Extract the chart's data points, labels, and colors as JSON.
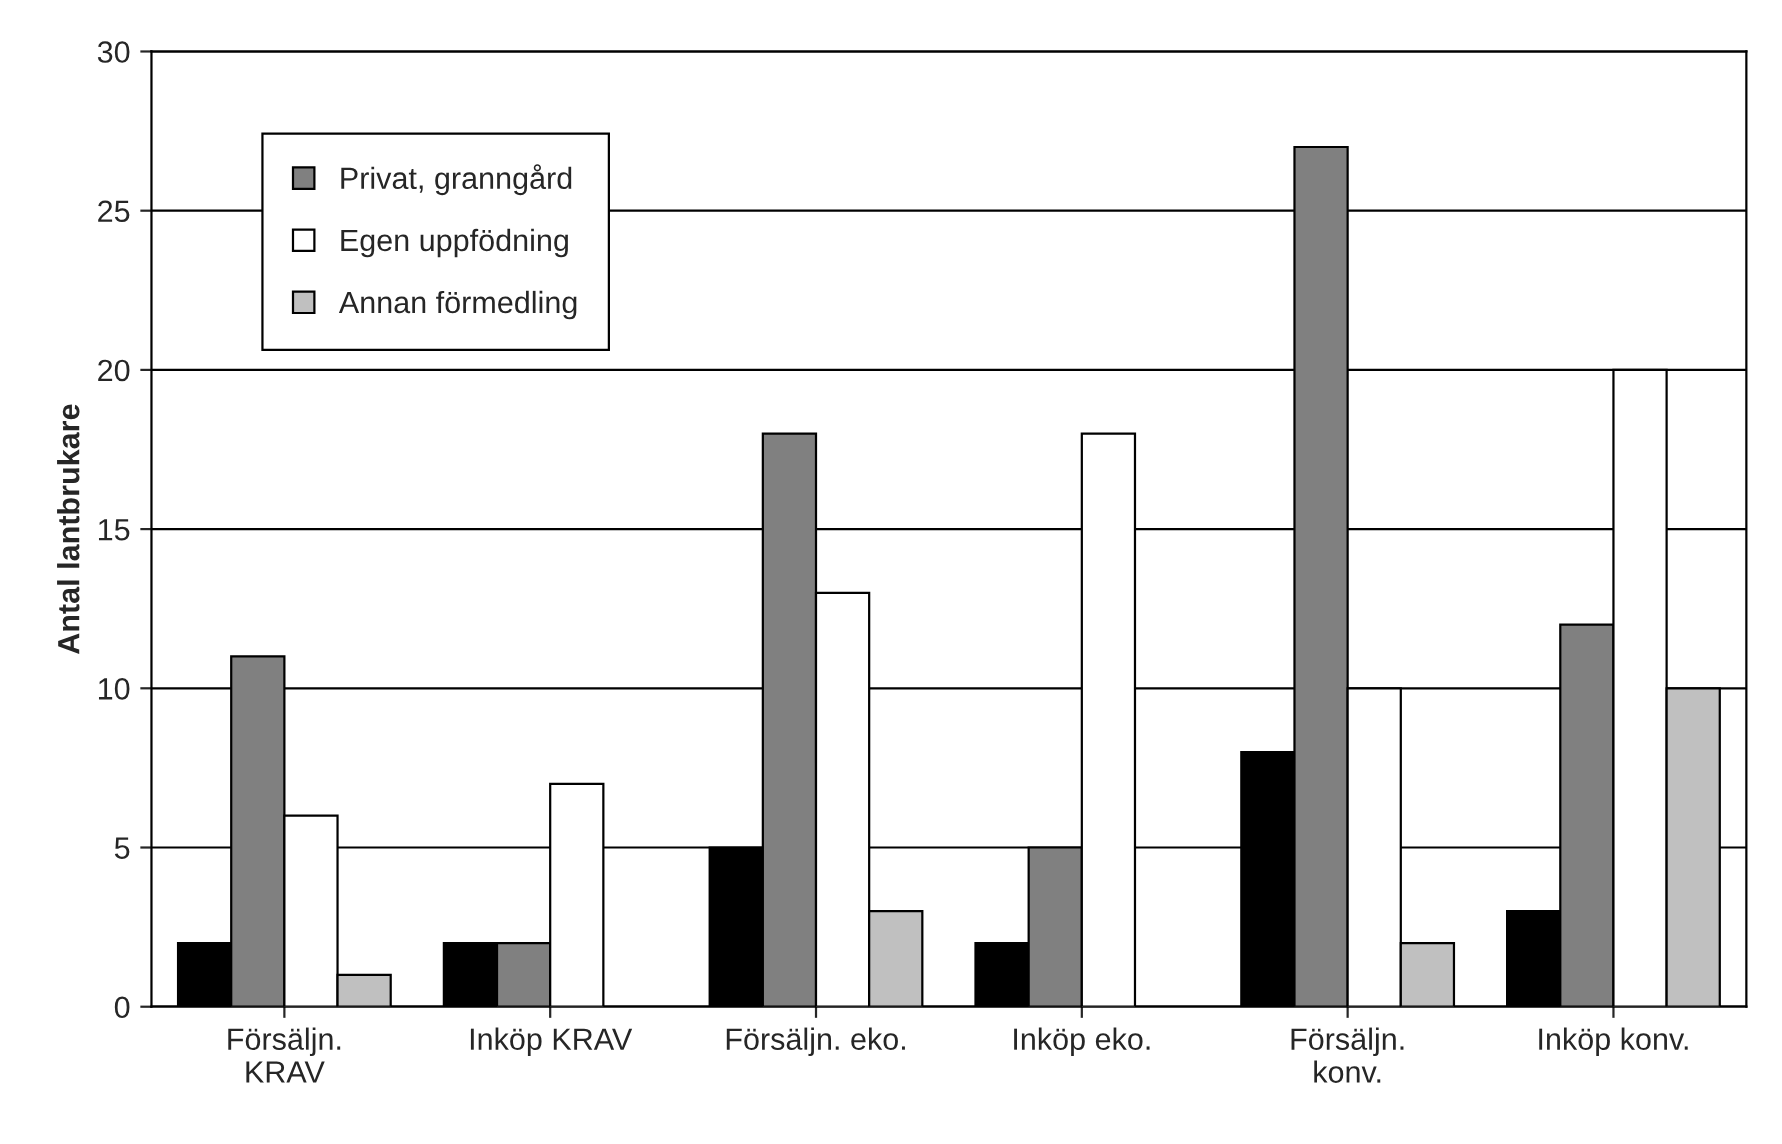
{
  "chart_data": {
    "type": "bar",
    "ylabel": "Antal lantbrukare",
    "categories": [
      "Försäljn.\nKRAV",
      "Inköp KRAV",
      "Försäljn. eko.",
      "Inköp eko.",
      "Försäljn.\nkonv.",
      "Inköp konv."
    ],
    "series": [
      {
        "color": "#000000",
        "values": [
          2,
          2,
          5,
          2,
          8,
          3
        ]
      },
      {
        "name": "Privat, granngård",
        "color": "#808080",
        "values": [
          11,
          2,
          18,
          5,
          27,
          12
        ]
      },
      {
        "name": "Egen uppfödning",
        "color": "#ffffff",
        "values": [
          6,
          7,
          13,
          18,
          10,
          20
        ]
      },
      {
        "name": "Annan förmedling",
        "color": "#c0c0c0",
        "values": [
          1,
          0,
          3,
          0,
          2,
          10
        ]
      }
    ],
    "ylim": [
      0,
      30
    ],
    "yticks": [
      0,
      5,
      10,
      15,
      20,
      25,
      30
    ],
    "grid": "y",
    "legend": "top left"
  }
}
